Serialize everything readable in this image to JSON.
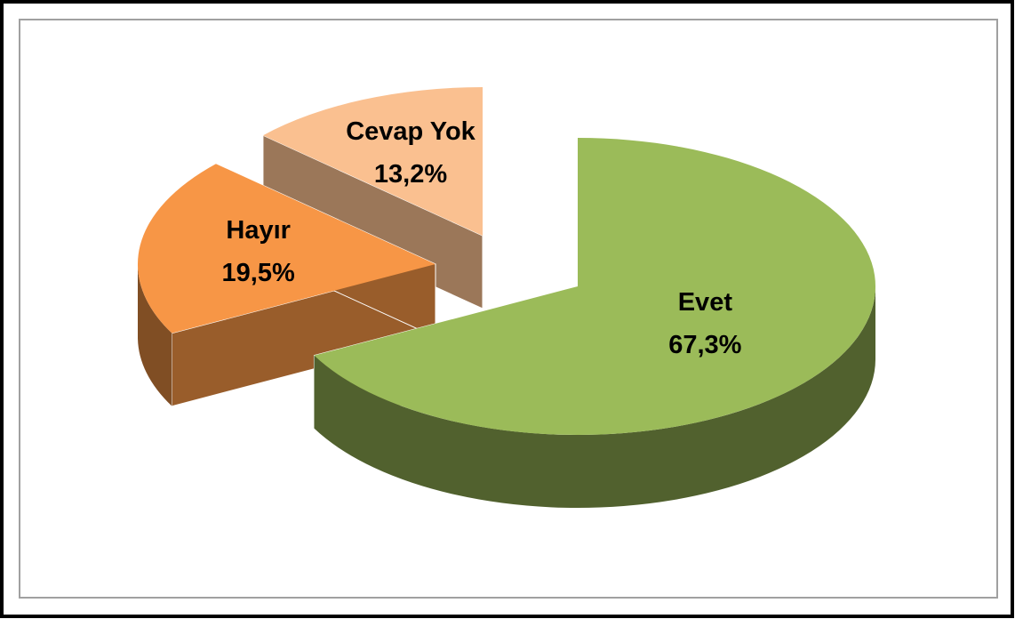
{
  "chart_data": {
    "type": "pie3d",
    "categories": [
      "Evet",
      "Hayır",
      "Cevap Yok"
    ],
    "values": [
      67.3,
      19.5,
      13.2
    ],
    "value_labels": [
      "67,3%",
      "19,5%",
      "13,2%"
    ],
    "colors": [
      "#9bbb59",
      "#f79646",
      "#fac090"
    ]
  }
}
